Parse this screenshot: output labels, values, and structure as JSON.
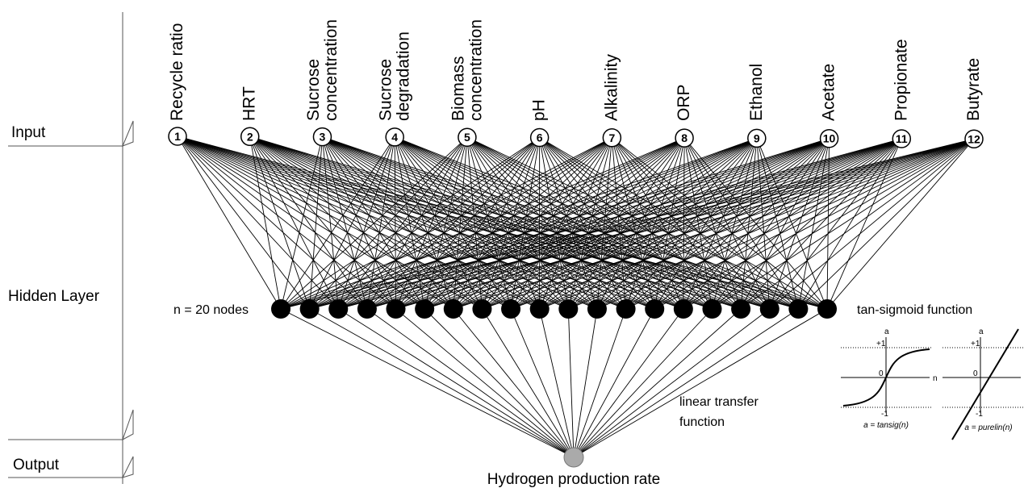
{
  "layers": [
    "Input",
    "Hidden Layer",
    "Output"
  ],
  "inputs": [
    {
      "number": "1",
      "label": [
        "Recycle ratio"
      ]
    },
    {
      "number": "2",
      "label": [
        "HRT"
      ]
    },
    {
      "number": "3",
      "label": [
        "Sucrose",
        "concentration"
      ]
    },
    {
      "number": "4",
      "label": [
        "Sucrose",
        "degradation"
      ]
    },
    {
      "number": "5",
      "label": [
        "Biomass",
        "concentration"
      ]
    },
    {
      "number": "6",
      "label": [
        "pH"
      ]
    },
    {
      "number": "7",
      "label": [
        "Alkalinity"
      ]
    },
    {
      "number": "8",
      "label": [
        "ORP"
      ]
    },
    {
      "number": "9",
      "label": [
        "Ethanol"
      ]
    },
    {
      "number": "10",
      "label": [
        "Acetate"
      ]
    },
    {
      "number": "11",
      "label": [
        "Propionate"
      ]
    },
    {
      "number": "12",
      "label": [
        "Butyrate"
      ]
    }
  ],
  "hidden_label": "n = 20 nodes",
  "hidden_function": "tan-sigmoid function",
  "output_function": [
    "linear transfer",
    "function"
  ],
  "output_label": "Hydrogen production rate",
  "plots": [
    {
      "y_axis": "a",
      "top": "+1",
      "origin": "0",
      "x_axis": "n",
      "bottom": "-1",
      "caption": "a = tansig(n)"
    },
    {
      "y_axis": "a",
      "top": "+1",
      "origin": "0",
      "bottom": "-1",
      "caption": "a = purelin(n)"
    }
  ]
}
